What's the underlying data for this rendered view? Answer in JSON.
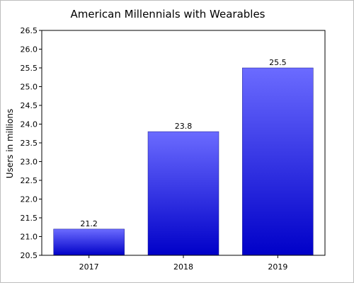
{
  "chart_data": {
    "type": "bar",
    "title": "American Millennials with Wearables",
    "xlabel": "",
    "ylabel": "Users in millions",
    "categories": [
      "2017",
      "2018",
      "2019"
    ],
    "values": [
      21.2,
      23.8,
      25.5
    ],
    "data_labels": [
      "21.2",
      "23.8",
      "25.5"
    ],
    "ylim": [
      20.5,
      26.5
    ],
    "yticks": [
      "20.5",
      "21.0",
      "21.5",
      "22.0",
      "22.5",
      "23.0",
      "23.5",
      "24.0",
      "24.5",
      "25.0",
      "25.5",
      "26.0",
      "26.5"
    ],
    "grid": false,
    "legend": "none",
    "colors": {
      "bar_top": "#6b6bff",
      "bar_bottom": "#0000c8",
      "axis": "#000000"
    }
  }
}
